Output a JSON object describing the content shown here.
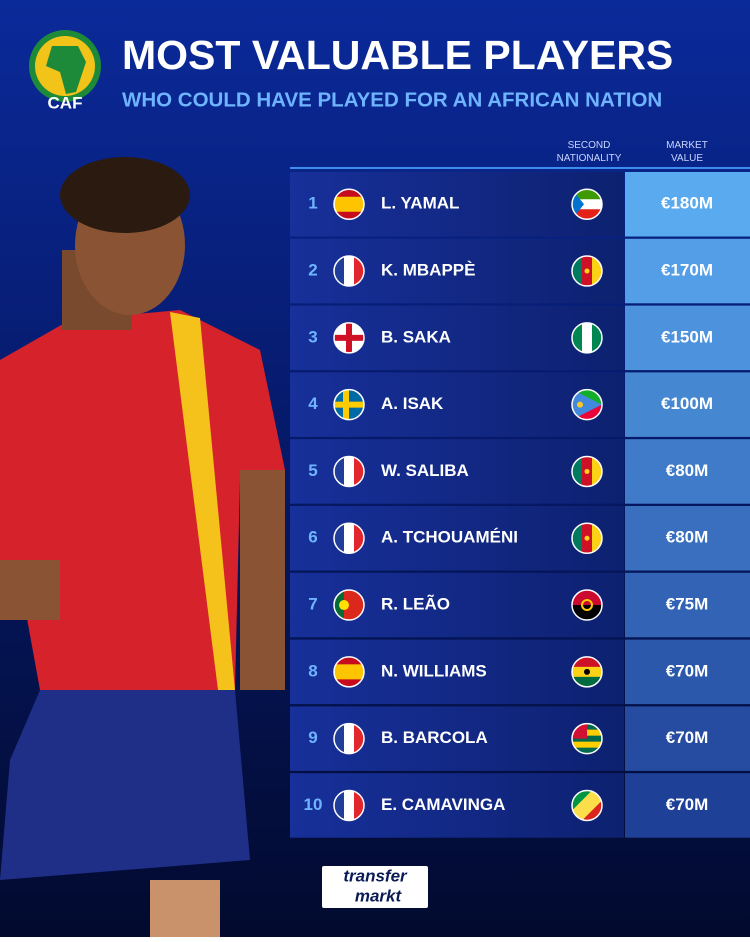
{
  "header": {
    "logo": "CAF",
    "title": "MOST VALUABLE PLAYERS",
    "subtitle": "WHO COULD HAVE PLAYED FOR AN AFRICAN NATION"
  },
  "table": {
    "columns": [
      "SECOND NATIONALITY",
      "MARKET VALUE"
    ],
    "rows": [
      {
        "rank": 1,
        "name": "L. YAMAL",
        "value": "€180M"
      },
      {
        "rank": 2,
        "name": "K. MBAPPÈ",
        "value": "€170M"
      },
      {
        "rank": 3,
        "name": "B. SAKA",
        "value": "€150M"
      },
      {
        "rank": 4,
        "name": "A. ISAK",
        "value": "€100M"
      },
      {
        "rank": 5,
        "name": "W. SALIBA",
        "value": "€80M"
      },
      {
        "rank": 6,
        "name": "A. TCHOUAMÉNI",
        "value": "€80M"
      },
      {
        "rank": 7,
        "name": "R. LEÃO",
        "value": "€75M"
      },
      {
        "rank": 8,
        "name": "N. WILLIAMS",
        "value": "€70M"
      },
      {
        "rank": 9,
        "name": "B. BARCOLA",
        "value": "€70M"
      },
      {
        "rank": 10,
        "name": "E. CAMAVINGA",
        "value": "€70M"
      }
    ]
  },
  "footer": {
    "brand_top": "transfer",
    "brand_bottom": "markt"
  }
}
